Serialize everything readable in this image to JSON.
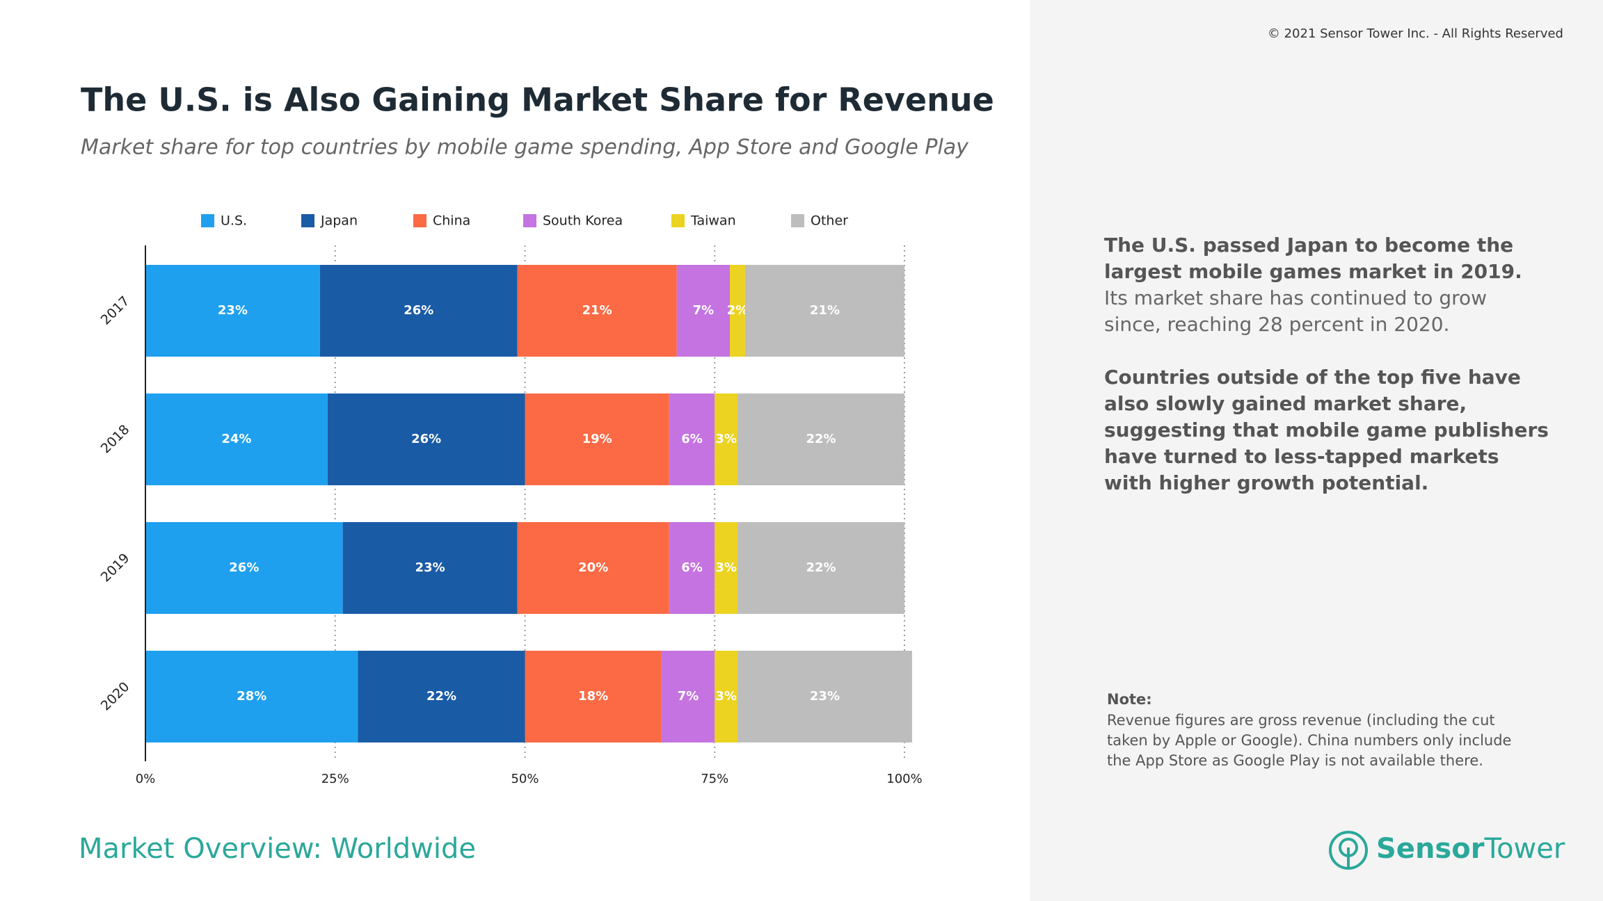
{
  "header": {
    "copyright": "© 2021 Sensor Tower Inc. - All Rights Reserved"
  },
  "chart_data": {
    "type": "stacked-bar-horizontal",
    "title": "The U.S. is Also Gaining Market Share for Revenue",
    "subtitle": "Market share for top countries by mobile game spending, App Store and Google Play",
    "categories": [
      "2017",
      "2018",
      "2019",
      "2020"
    ],
    "series": [
      {
        "name": "U.S.",
        "color": "#1fa0ee",
        "values": [
          23,
          24,
          26,
          28
        ],
        "value_labels": [
          "23%",
          "24%",
          "26%",
          "28%"
        ]
      },
      {
        "name": "Japan",
        "color": "#1a5ba6",
        "values": [
          26,
          26,
          23,
          22
        ],
        "value_labels": [
          "26%",
          "26%",
          "23%",
          "22%"
        ]
      },
      {
        "name": "China",
        "color": "#fb6a45",
        "values": [
          21,
          19,
          20,
          18
        ],
        "value_labels": [
          "21%",
          "19%",
          "20%",
          "18%"
        ]
      },
      {
        "name": "South Korea",
        "color": "#c473e0",
        "values": [
          7,
          6,
          6,
          7
        ],
        "value_labels": [
          "7%",
          "6%",
          "6%",
          "7%"
        ]
      },
      {
        "name": "Taiwan",
        "color": "#ecd321",
        "values": [
          2,
          3,
          3,
          3
        ],
        "value_labels": [
          "2%",
          "3%",
          "3%",
          "3%"
        ]
      },
      {
        "name": "Other",
        "color": "#bdbdbd",
        "values": [
          21,
          22,
          22,
          23
        ],
        "value_labels": [
          "21%",
          "22%",
          "22%",
          "23%"
        ]
      }
    ],
    "xlim": [
      0,
      100
    ],
    "xticks": [
      {
        "value": 0,
        "label": "0%"
      },
      {
        "value": 25,
        "label": "25%"
      },
      {
        "value": 50,
        "label": "50%"
      },
      {
        "value": 75,
        "label": "75%"
      },
      {
        "value": 100,
        "label": "100%"
      }
    ],
    "grid": true,
    "legend": "top"
  },
  "side": {
    "paragraphs": [
      {
        "bold": "The U.S. passed Japan to become the largest mobile games market in 2019.",
        "text": " Its market share has continued to grow since, reaching 28 percent in 2020."
      },
      {
        "bold": "Countries outside of the top five have also slowly gained market share, suggesting that mobile game publishers have turned to less-tapped markets with higher growth potential."
      }
    ],
    "note_title": "Note:",
    "note": "Revenue figures are gross revenue (including the cut taken by Apple or Google). China numbers only include the App Store as Google Play is not available there."
  },
  "footer": {
    "section": "Market Overview: Worldwide",
    "logo_bold": "Sensor",
    "logo_light": "Tower"
  }
}
